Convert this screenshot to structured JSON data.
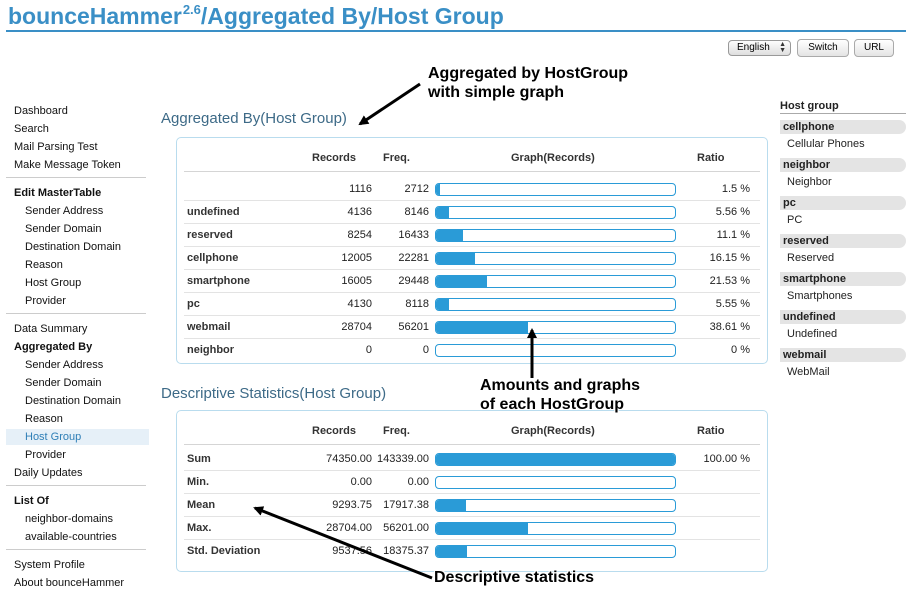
{
  "header": {
    "brand": "bounceHammer",
    "version": "2.6",
    "path": "/Aggregated By/Host Group",
    "language": "English",
    "switch_label": "Switch",
    "url_label": "URL"
  },
  "nav": [
    {
      "label": "Dashboard",
      "level": 1,
      "bold": false,
      "active": false
    },
    {
      "label": "Search",
      "level": 1,
      "bold": false,
      "active": false
    },
    {
      "label": "Mail Parsing Test",
      "level": 1,
      "bold": false,
      "active": false
    },
    {
      "label": "Make Message Token",
      "level": 1,
      "bold": false,
      "active": false
    },
    {
      "label": "Edit MasterTable",
      "level": 1,
      "bold": true,
      "active": false
    },
    {
      "label": "Sender Address",
      "level": 2,
      "bold": false,
      "active": false
    },
    {
      "label": "Sender Domain",
      "level": 2,
      "bold": false,
      "active": false
    },
    {
      "label": "Destination Domain",
      "level": 2,
      "bold": false,
      "active": false
    },
    {
      "label": "Reason",
      "level": 2,
      "bold": false,
      "active": false
    },
    {
      "label": "Host Group",
      "level": 2,
      "bold": false,
      "active": false
    },
    {
      "label": "Provider",
      "level": 2,
      "bold": false,
      "active": false
    },
    {
      "label": "Data Summary",
      "level": 1,
      "bold": false,
      "active": false
    },
    {
      "label": "Aggregated By",
      "level": 1,
      "bold": true,
      "active": false
    },
    {
      "label": "Sender Address",
      "level": 2,
      "bold": false,
      "active": false
    },
    {
      "label": "Sender Domain",
      "level": 2,
      "bold": false,
      "active": false
    },
    {
      "label": "Destination Domain",
      "level": 2,
      "bold": false,
      "active": false
    },
    {
      "label": "Reason",
      "level": 2,
      "bold": false,
      "active": false
    },
    {
      "label": "Host Group",
      "level": 2,
      "bold": false,
      "active": true
    },
    {
      "label": "Provider",
      "level": 2,
      "bold": false,
      "active": false
    },
    {
      "label": "Daily Updates",
      "level": 1,
      "bold": false,
      "active": false
    },
    {
      "label": "List Of",
      "level": 1,
      "bold": true,
      "active": false
    },
    {
      "label": "neighbor-domains",
      "level": 2,
      "bold": false,
      "active": false
    },
    {
      "label": "available-countries",
      "level": 2,
      "bold": false,
      "active": false
    },
    {
      "label": "System Profile",
      "level": 1,
      "bold": false,
      "active": false
    },
    {
      "label": "About bounceHammer",
      "level": 1,
      "bold": false,
      "active": false
    }
  ],
  "aggregated": {
    "title": "Aggregated By(Host Group)",
    "columns": {
      "records": "Records",
      "freq": "Freq.",
      "graph": "Graph(Records)",
      "ratio": "Ratio"
    },
    "rows": [
      {
        "name": "",
        "records": "1116",
        "freq": "2712",
        "ratio": "1.5 %",
        "fill": 0.015
      },
      {
        "name": "undefined",
        "records": "4136",
        "freq": "8146",
        "ratio": "5.56 %",
        "fill": 0.0556
      },
      {
        "name": "reserved",
        "records": "8254",
        "freq": "16433",
        "ratio": "11.1 %",
        "fill": 0.111
      },
      {
        "name": "cellphone",
        "records": "12005",
        "freq": "22281",
        "ratio": "16.15 %",
        "fill": 0.1615
      },
      {
        "name": "smartphone",
        "records": "16005",
        "freq": "29448",
        "ratio": "21.53 %",
        "fill": 0.2153
      },
      {
        "name": "pc",
        "records": "4130",
        "freq": "8118",
        "ratio": "5.55 %",
        "fill": 0.0555
      },
      {
        "name": "webmail",
        "records": "28704",
        "freq": "56201",
        "ratio": "38.61 %",
        "fill": 0.3861
      },
      {
        "name": "neighbor",
        "records": "0",
        "freq": "0",
        "ratio": "0 %",
        "fill": 0
      }
    ]
  },
  "descriptive": {
    "title": "Descriptive Statistics(Host Group)",
    "columns": {
      "records": "Records",
      "freq": "Freq.",
      "graph": "Graph(Records)",
      "ratio": "Ratio"
    },
    "rows": [
      {
        "name": "Sum",
        "records": "74350.00",
        "freq": "143339.00",
        "ratio": "100.00 %",
        "fill": 1.0
      },
      {
        "name": "Min.",
        "records": "0.00",
        "freq": "0.00",
        "ratio": "",
        "fill": 0
      },
      {
        "name": "Mean",
        "records": "9293.75",
        "freq": "17917.38",
        "ratio": "",
        "fill": 0.125
      },
      {
        "name": "Max.",
        "records": "28704.00",
        "freq": "56201.00",
        "ratio": "",
        "fill": 0.3861
      },
      {
        "name": "Std. Deviation",
        "records": "9537.56",
        "freq": "18375.37",
        "ratio": "",
        "fill": 0.1283
      }
    ]
  },
  "sidebar": {
    "title": "Host group",
    "groups": [
      {
        "name": "cellphone",
        "desc": "Cellular Phones"
      },
      {
        "name": "neighbor",
        "desc": "Neighbor"
      },
      {
        "name": "pc",
        "desc": "PC"
      },
      {
        "name": "reserved",
        "desc": "Reserved"
      },
      {
        "name": "smartphone",
        "desc": "Smartphones"
      },
      {
        "name": "undefined",
        "desc": "Undefined"
      },
      {
        "name": "webmail",
        "desc": "WebMail"
      }
    ]
  },
  "annotations": {
    "a1_line1": "Aggregated by HostGroup",
    "a1_line2": "with simple graph",
    "a2_line1": "Amounts and graphs",
    "a2_line2": "of each HostGroup",
    "a3": "Descriptive statistics"
  },
  "colors": {
    "brand": "#3a8fc6",
    "bar": "#2a9bd7",
    "heading": "#3d6a87"
  }
}
